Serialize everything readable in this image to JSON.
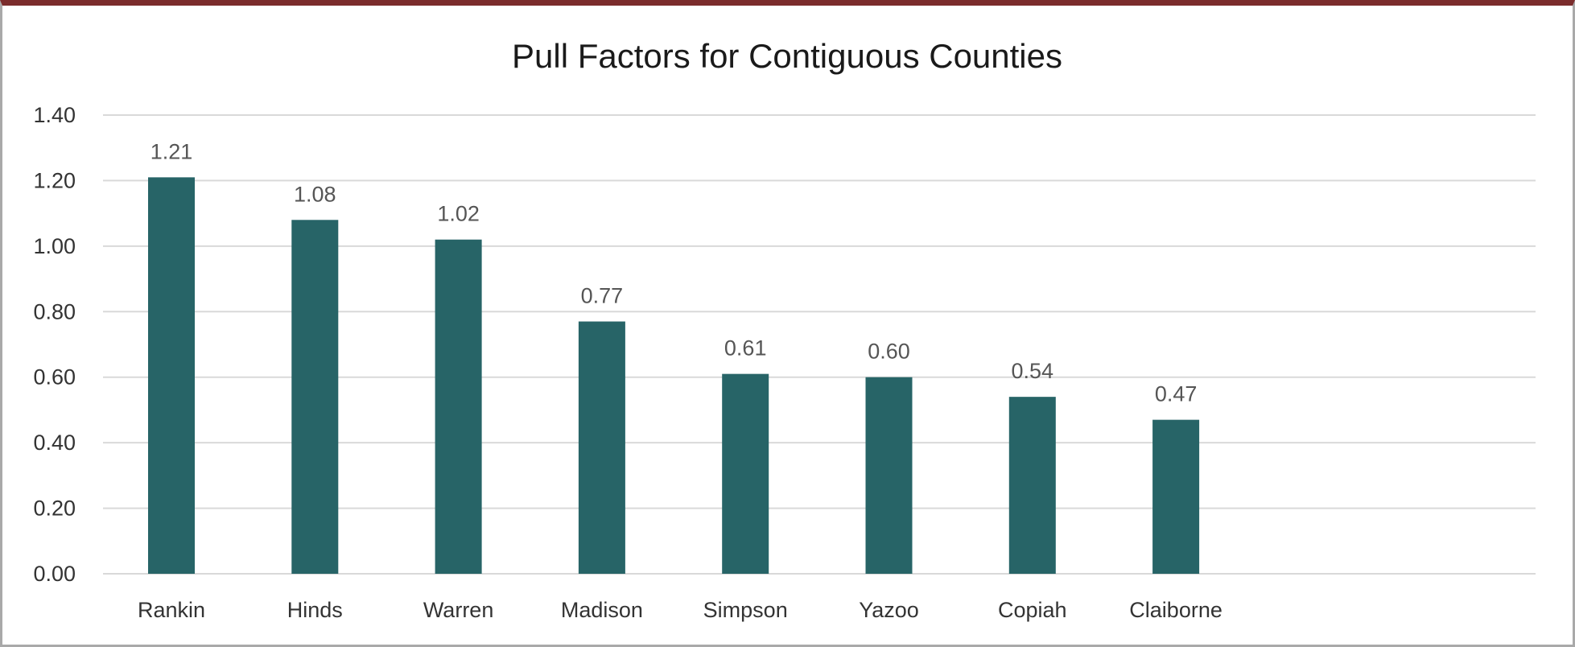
{
  "chart_data": {
    "type": "bar",
    "title": "Pull Factors for Contiguous Counties",
    "categories": [
      "Rankin",
      "Hinds",
      "Warren",
      "Madison",
      "Simpson",
      "Yazoo",
      "Copiah",
      "Claiborne"
    ],
    "values": [
      1.21,
      1.08,
      1.02,
      0.77,
      0.61,
      0.6,
      0.54,
      0.47
    ],
    "value_labels": [
      "1.21",
      "1.08",
      "1.02",
      "0.77",
      "0.61",
      "0.60",
      "0.54",
      "0.47"
    ],
    "ylim": [
      0,
      1.4
    ],
    "yticks": [
      "0.00",
      "0.20",
      "0.40",
      "0.60",
      "0.80",
      "1.00",
      "1.20",
      "1.40"
    ],
    "grid": true,
    "bar_color": "#276467",
    "grid_color": "#d9d9d9",
    "frame_top_color": "#7b2c2c"
  }
}
